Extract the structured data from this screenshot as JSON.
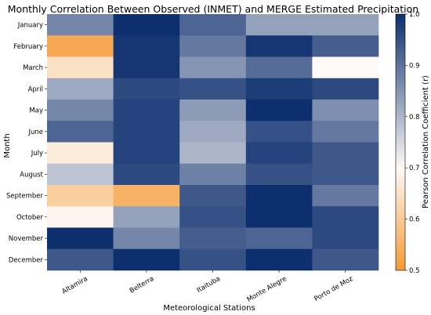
{
  "chart_data": {
    "type": "heatmap",
    "title": "Monthly Correlation Between Observed (INMET) and MERGE Estimated Precipitation",
    "xlabel": "Meteorological Stations",
    "ylabel": "Month",
    "x": [
      "Altamira",
      "Belterra",
      "Itaituba",
      "Monte Alegre",
      "Porto de Moz"
    ],
    "y": [
      "January",
      "February",
      "March",
      "April",
      "May",
      "June",
      "July",
      "August",
      "September",
      "October",
      "November",
      "December"
    ],
    "values": [
      [
        0.87,
        1.0,
        0.92,
        0.83,
        0.83
      ],
      [
        0.53,
        0.99,
        0.89,
        0.99,
        0.93
      ],
      [
        0.65,
        0.99,
        0.85,
        0.91,
        0.7
      ],
      [
        0.82,
        0.96,
        0.95,
        0.98,
        0.96
      ],
      [
        0.87,
        0.97,
        0.84,
        1.0,
        0.86
      ],
      [
        0.92,
        0.97,
        0.82,
        0.95,
        0.89
      ],
      [
        0.67,
        0.97,
        0.8,
        0.97,
        0.94
      ],
      [
        0.78,
        0.96,
        0.88,
        0.95,
        0.94
      ],
      [
        0.61,
        0.55,
        0.94,
        1.0,
        0.89
      ],
      [
        0.69,
        0.83,
        0.95,
        1.0,
        0.96
      ],
      [
        1.0,
        0.87,
        0.93,
        0.92,
        0.96
      ],
      [
        0.94,
        1.0,
        0.95,
        1.0,
        0.94
      ]
    ],
    "colorbar": {
      "label": "Pearson Correlation Coefficient (r)",
      "min": 0.5,
      "max": 1.0,
      "ticks": [
        "0.5",
        "0.6",
        "0.7",
        "0.8",
        "0.9",
        "1.0"
      ],
      "colors": {
        "low": "#f59a36",
        "mid": "#fdfaf7",
        "high": "#0d2f6e"
      }
    }
  }
}
